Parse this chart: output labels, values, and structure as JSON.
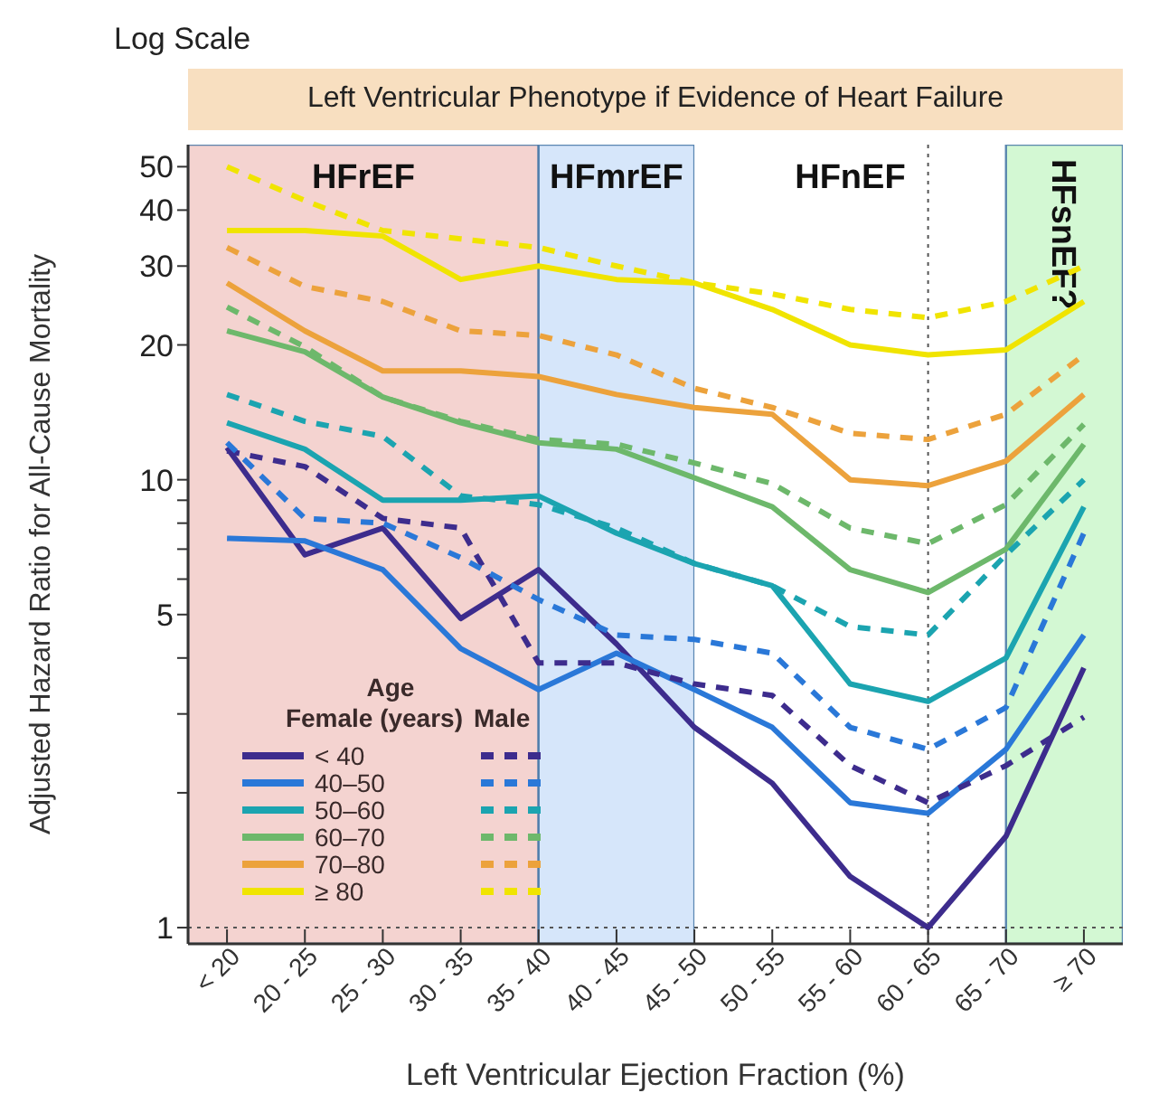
{
  "chart_data": {
    "type": "line",
    "title": "Left Ventricular Phenotype if Evidence of Heart Failure",
    "xlabel": "Left Ventricular Ejection Fraction (%)",
    "ylabel": "Adjusted Hazard Ratio for All-Cause Mortality",
    "legend_title": "Age",
    "annotations": [
      "Log Scale",
      "Female (years)",
      "Male"
    ],
    "categories": [
      "< 20",
      "20 - 25",
      "25 - 30",
      "30 - 35",
      "35 - 40",
      "40 - 45",
      "45 - 50",
      "50 - 55",
      "55 - 60",
      "60 - 65",
      "65 - 70",
      "≥ 70"
    ],
    "log": true,
    "ylim": [
      0.92,
      56
    ],
    "yticks": [
      1,
      {
        "value": 2,
        "label": null
      },
      {
        "value": 3,
        "label": null
      },
      {
        "value": 4,
        "label": null
      },
      5,
      {
        "value": 6,
        "label": null
      },
      {
        "value": 7,
        "label": null
      },
      {
        "value": 8,
        "label": null
      },
      {
        "value": 9,
        "label": null
      },
      10,
      20,
      30,
      40,
      50
    ],
    "grid": false,
    "legend": "bottom left",
    "marker": "none",
    "bands": [
      {
        "axis": "x",
        "from": "< 20",
        "to": "35 - 40",
        "label": "HFrEF",
        "color": "#f4d3d0"
      },
      {
        "axis": "x",
        "from": "35 - 40",
        "to": "45 - 50",
        "label": "HFmrEF",
        "color": "#d6e6fa"
      },
      {
        "axis": "x",
        "from": "45 - 50",
        "to": "65 - 70",
        "label": "HFnEF",
        "color": "#ffffff"
      },
      {
        "axis": "x",
        "from": "65 - 70",
        "to": "≥ 70",
        "label": "HFsnEF?",
        "color": "#d3f8d3"
      }
    ],
    "ref_lines": [
      {
        "axis": "y",
        "value": 1,
        "line_style": "dotted",
        "color": "#555555"
      },
      {
        "axis": "x",
        "value": "60 - 65",
        "line_style": "dotted",
        "color": "#555555"
      }
    ],
    "series": [
      {
        "name": "< 40",
        "color": "#3d2c8d",
        "line_style": "solid",
        "values": [
          11.8,
          6.8,
          7.8,
          4.9,
          6.3,
          4.3,
          2.8,
          2.1,
          1.3,
          1.0,
          1.6,
          3.8
        ]
      },
      {
        "name": "40–50",
        "color": "#2a78d8",
        "line_style": "solid",
        "values": [
          7.4,
          7.3,
          6.3,
          4.2,
          3.4,
          4.1,
          3.4,
          2.8,
          1.9,
          1.8,
          2.5,
          4.5
        ]
      },
      {
        "name": "50–60",
        "color": "#1ba4b0",
        "line_style": "solid",
        "values": [
          13.4,
          11.7,
          9,
          9,
          9.2,
          7.6,
          6.5,
          5.8,
          3.5,
          3.2,
          4,
          8.7
        ]
      },
      {
        "name": "60–70",
        "color": "#6db86b",
        "line_style": "solid",
        "values": [
          21.5,
          19.3,
          15.3,
          13.4,
          12.1,
          11.7,
          10.1,
          8.7,
          6.3,
          5.6,
          7,
          12
        ]
      },
      {
        "name": "70–80",
        "color": "#eca23c",
        "line_style": "solid",
        "values": [
          27.5,
          21.5,
          17.5,
          17.5,
          17,
          15.5,
          14.5,
          14,
          10,
          9.7,
          11,
          15.5
        ]
      },
      {
        "name": "≥ 80",
        "color": "#f0e400",
        "line_style": "solid",
        "values": [
          36,
          36,
          35,
          28,
          30,
          28,
          27.5,
          24,
          20,
          19,
          19.5,
          25
        ]
      },
      {
        "color": "#3d2c8d",
        "line_style": "dashed",
        "values": [
          11.6,
          10.7,
          8.2,
          7.8,
          3.9,
          3.9,
          3.5,
          3.3,
          2.3,
          1.9,
          2.3,
          2.95
        ]
      },
      {
        "color": "#2a78d8",
        "line_style": "dashed",
        "values": [
          12.1,
          8.2,
          8,
          6.7,
          5.4,
          4.5,
          4.4,
          4.1,
          2.8,
          2.5,
          3.1,
          7.6
        ]
      },
      {
        "color": "#1ba4b0",
        "line_style": "dashed",
        "values": [
          15.5,
          13.5,
          12.5,
          9.2,
          8.8,
          7.8,
          6.5,
          5.8,
          4.7,
          4.5,
          6.8,
          10
        ]
      },
      {
        "color": "#6db86b",
        "line_style": "dashed",
        "values": [
          24.3,
          19.8,
          15.3,
          13.5,
          12.3,
          12,
          10.9,
          9.8,
          7.8,
          7.2,
          8.8,
          13.3
        ]
      },
      {
        "color": "#eca23c",
        "line_style": "dashed",
        "values": [
          33,
          27,
          25,
          21.5,
          21,
          19,
          16,
          14.5,
          12.7,
          12.3,
          14,
          19
        ]
      },
      {
        "color": "#f0e400",
        "line_style": "dashed",
        "values": [
          50,
          42,
          36,
          34.5,
          33,
          30,
          27.5,
          26,
          24,
          23,
          25,
          30
        ]
      }
    ]
  }
}
